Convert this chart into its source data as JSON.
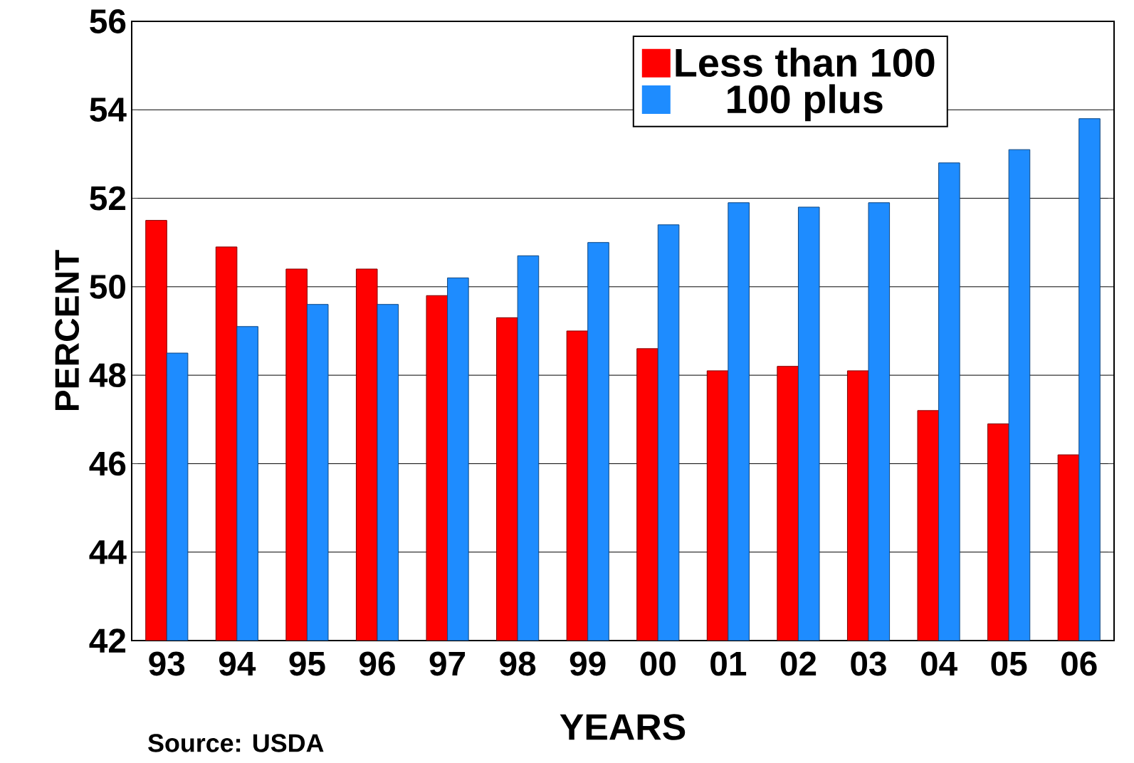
{
  "chart_data": {
    "type": "bar",
    "xlabel": "YEARS",
    "ylabel": "PERCENT",
    "categories": [
      "93",
      "94",
      "95",
      "96",
      "97",
      "98",
      "99",
      "00",
      "01",
      "02",
      "03",
      "04",
      "05",
      "06"
    ],
    "series": [
      {
        "name": "Less than 100",
        "color": "#ff0000",
        "values": [
          51.5,
          50.9,
          50.4,
          50.4,
          49.8,
          49.3,
          49.0,
          48.6,
          48.1,
          48.2,
          48.1,
          47.2,
          46.9,
          46.2
        ]
      },
      {
        "name": "100 plus",
        "color": "#1e8cff",
        "values": [
          48.5,
          49.1,
          49.6,
          49.6,
          50.2,
          50.7,
          51.0,
          51.4,
          51.9,
          51.8,
          51.9,
          52.8,
          53.1,
          53.8
        ]
      }
    ],
    "ylim": [
      42,
      56
    ],
    "yticks": [
      42,
      44,
      46,
      48,
      50,
      52,
      54,
      56
    ],
    "grid": "y",
    "legend": "top right",
    "annotations": [
      "Source: USDA"
    ]
  }
}
